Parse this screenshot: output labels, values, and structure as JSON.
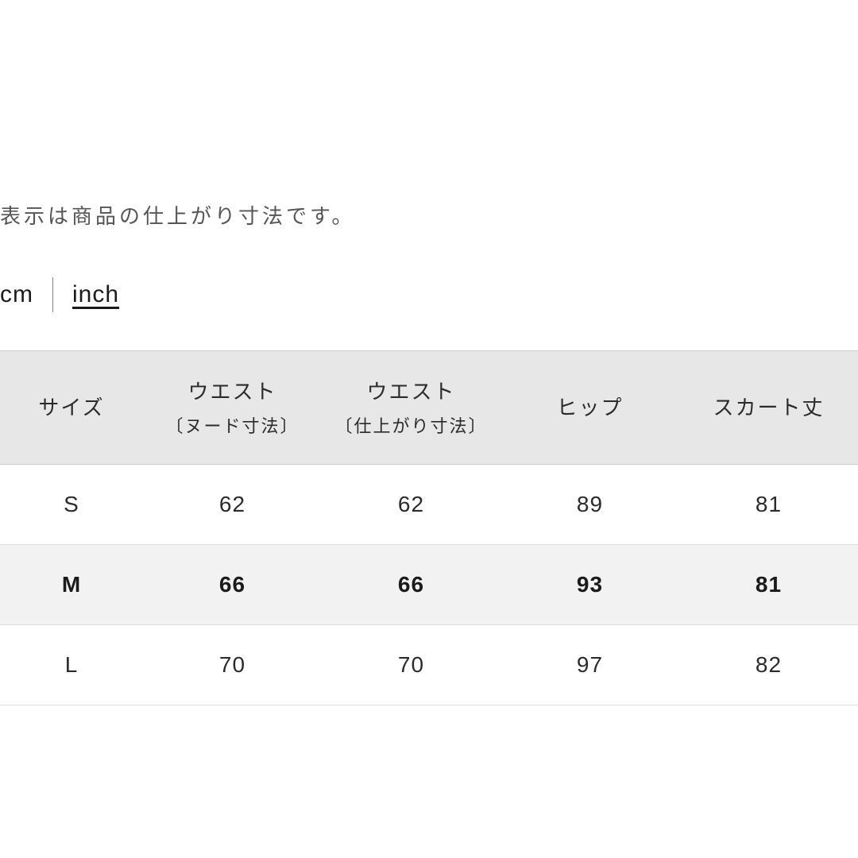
{
  "description": "表示は商品の仕上がり寸法です。",
  "units": {
    "cm_label": "cm",
    "inch_label": "inch",
    "active": "cm"
  },
  "table": {
    "headers": {
      "size": "サイズ",
      "waist_nude_main": "ウエスト",
      "waist_nude_sub": "〔ヌード寸法〕",
      "waist_finished_main": "ウエスト",
      "waist_finished_sub": "〔仕上がり寸法〕",
      "hip": "ヒップ",
      "skirt_length": "スカート丈"
    },
    "rows": [
      {
        "size": "S",
        "waist_nude": "62",
        "waist_finished": "62",
        "hip": "89",
        "skirt_length": "81",
        "highlighted": false
      },
      {
        "size": "M",
        "waist_nude": "66",
        "waist_finished": "66",
        "hip": "93",
        "skirt_length": "81",
        "highlighted": true
      },
      {
        "size": "L",
        "waist_nude": "70",
        "waist_finished": "70",
        "hip": "97",
        "skirt_length": "82",
        "highlighted": false
      }
    ]
  },
  "styling": {
    "background_color": "#ffffff",
    "text_color": "#1b1b1b",
    "muted_text_color": "#555555",
    "header_bg_color": "#e7e7e7",
    "highlight_bg_color": "#f2f2f2",
    "border_color": "#cccccc",
    "row_border_color": "#dddddd",
    "description_fontsize": 26,
    "tab_fontsize": 30,
    "header_fontsize": 26,
    "header_sub_fontsize": 22,
    "cell_fontsize": 28
  }
}
